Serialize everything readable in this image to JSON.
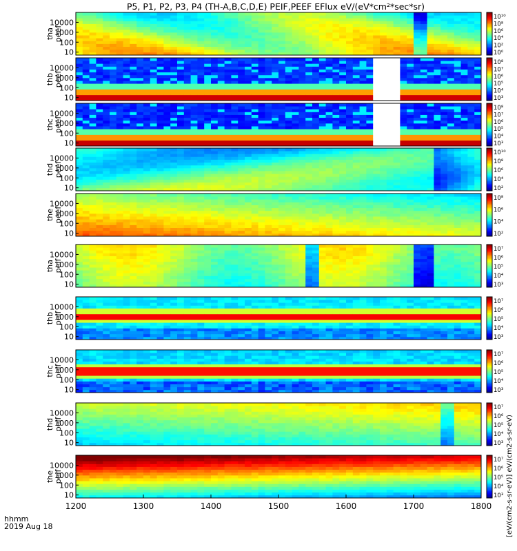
{
  "title": "P5, P1, P2, P3, P4 (TH-A,B,C,D,E) PEIF,PEEF EFlux eV/(eV*cm²*sec*sr)",
  "time_label": "hhmm",
  "date_label": "2019 Aug 18",
  "colorbar_unit_label": "[eV/(cm2-s-sr-eV)] eV/(cm2-s-sr-eV)",
  "chart_data": {
    "type": "heatmap",
    "xlim": [
      1200,
      1800
    ],
    "xticks": [
      "1200",
      "1300",
      "1400",
      "1500",
      "1600",
      "1700",
      "1800"
    ],
    "ylog": true,
    "yticks": [
      "10",
      "100",
      "1000",
      "10000"
    ],
    "panels": [
      {
        "probe": "tha",
        "species": "peef",
        "ylabel": [
          "tha",
          "peef"
        ],
        "cbar": [
          "10¹⁰",
          "10⁸",
          "10⁶",
          "10⁴",
          "10²",
          "10⁰"
        ],
        "style": "tha_e"
      },
      {
        "probe": "thb",
        "species": "peef",
        "ylabel": [
          "thb",
          "peef"
        ],
        "cbar": [
          "10⁸",
          "10⁷",
          "10⁶",
          "10⁵",
          "10⁴",
          "10³"
        ],
        "style": "thb_e"
      },
      {
        "probe": "thc",
        "species": "peef",
        "ylabel": [
          "thc",
          "peef"
        ],
        "cbar": [
          "10⁸",
          "10⁷",
          "10⁶",
          "10⁵",
          "10⁴",
          "10³"
        ],
        "style": "thc_e"
      },
      {
        "probe": "thd",
        "species": "peef",
        "ylabel": [
          "thd",
          "peef"
        ],
        "cbar": [
          "10¹⁰",
          "10⁸",
          "10⁶",
          "10⁴",
          "10²"
        ],
        "style": "thd_e"
      },
      {
        "probe": "the",
        "species": "peef",
        "ylabel": [
          "the",
          "peef"
        ],
        "cbar": [
          "10⁸",
          "10⁶",
          "10⁴",
          "10²"
        ],
        "style": "the_e"
      },
      {
        "probe": "tha",
        "species": "peif",
        "ylabel": [
          "tha",
          "peif"
        ],
        "cbar": [
          "10⁷",
          "10⁶",
          "10⁵",
          "10⁴",
          "10³"
        ],
        "style": "tha_i"
      },
      {
        "probe": "thb",
        "species": "peif",
        "ylabel": [
          "thb",
          "peif"
        ],
        "cbar": [
          "10⁷",
          "10⁶",
          "10⁵",
          "10⁴",
          "10³"
        ],
        "style": "thb_i"
      },
      {
        "probe": "thc",
        "species": "peif",
        "ylabel": [
          "thc",
          "peif"
        ],
        "cbar": [
          "10⁷",
          "10⁶",
          "10⁵",
          "10⁴",
          "10³"
        ],
        "style": "thc_i"
      },
      {
        "probe": "thd",
        "species": "peif",
        "ylabel": [
          "thd",
          "peif"
        ],
        "cbar": [
          "10⁷",
          "10⁶",
          "10⁵",
          "10⁴",
          "10³"
        ],
        "style": "thd_i"
      },
      {
        "probe": "the",
        "species": "peif",
        "ylabel": [
          "the",
          "peif"
        ],
        "cbar": [
          "10⁷",
          "10⁶",
          "10⁵",
          "10⁴",
          "10³"
        ],
        "style": "the_i"
      }
    ],
    "data_gaps": [
      {
        "panel": 1,
        "x": [
          1645,
          1675
        ]
      },
      {
        "panel": 2,
        "x": [
          1645,
          1675
        ]
      }
    ]
  }
}
